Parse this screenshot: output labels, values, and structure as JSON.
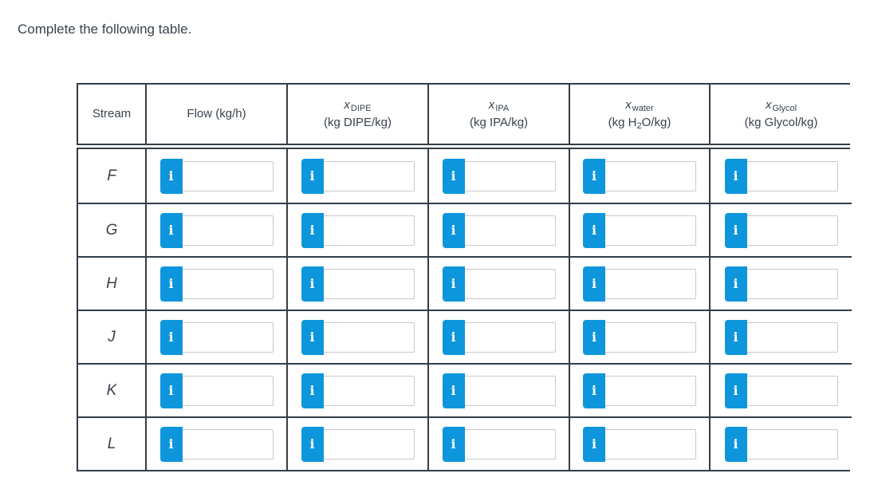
{
  "page": {
    "title": "Complete the following table."
  },
  "icons": {
    "info": "i"
  },
  "colors": {
    "accent_blue": "#0e96dd",
    "border_dark": "#323e48",
    "text_dark": "#39424e",
    "input_border": "#c9c9c9"
  },
  "table": {
    "columns": [
      {
        "label": "Stream"
      },
      {
        "label": "Flow (kg/h)"
      },
      {
        "symbol": "x",
        "subscript": "DIPE",
        "unit_pre": "(kg DIPE/kg)",
        "unit_sub": "",
        "unit_post": ""
      },
      {
        "symbol": "x",
        "subscript": "IPA",
        "unit_pre": "(kg IPA/kg)",
        "unit_sub": "",
        "unit_post": ""
      },
      {
        "symbol": "x",
        "subscript": "water",
        "unit_pre": "(kg H",
        "unit_sub": "2",
        "unit_post": "O/kg)"
      },
      {
        "symbol": "x",
        "subscript": "Glycol",
        "unit_pre": "(kg Glycol/kg)",
        "unit_sub": "",
        "unit_post": ""
      }
    ],
    "rows": [
      {
        "label": "F",
        "values": [
          "",
          "",
          "",
          "",
          ""
        ]
      },
      {
        "label": "G",
        "values": [
          "",
          "",
          "",
          "",
          ""
        ]
      },
      {
        "label": "H",
        "values": [
          "",
          "",
          "",
          "",
          ""
        ]
      },
      {
        "label": "J",
        "values": [
          "",
          "",
          "",
          "",
          ""
        ]
      },
      {
        "label": "K",
        "values": [
          "",
          "",
          "",
          "",
          ""
        ]
      },
      {
        "label": "L",
        "values": [
          "",
          "",
          "",
          "",
          ""
        ]
      }
    ]
  }
}
